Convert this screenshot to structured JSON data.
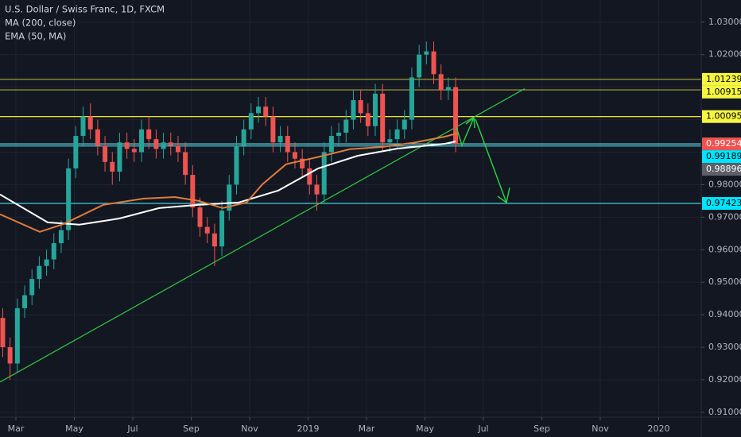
{
  "chart_data": {
    "type": "candlestick",
    "title": "U.S. Dollar / Swiss Franc, 1D, FXCM",
    "xlim": [
      0.456,
      24.456
    ],
    "xticks": [
      {
        "value": 1,
        "label": "Mar"
      },
      {
        "value": 3,
        "label": "May"
      },
      {
        "value": 5,
        "label": "Jul"
      },
      {
        "value": 7,
        "label": "Sep"
      },
      {
        "value": 9,
        "label": "Nov"
      },
      {
        "value": 11,
        "label": "2019"
      },
      {
        "value": 13,
        "label": "Mar"
      },
      {
        "value": 15,
        "label": "May"
      },
      {
        "value": 17,
        "label": "Jul"
      },
      {
        "value": 19,
        "label": "Sep"
      },
      {
        "value": 21,
        "label": "Nov"
      },
      {
        "value": 23,
        "label": "2020"
      }
    ],
    "ylim": [
      0.9085,
      1.0368
    ],
    "yticks": [
      {
        "value": 1.03,
        "label": "1.03000"
      },
      {
        "value": 1.02,
        "label": "1.02000"
      },
      {
        "value": 1.01,
        "label": "1.01000"
      },
      {
        "value": 1.0,
        "label": "1.00000"
      },
      {
        "value": 0.99,
        "label": "0.99000"
      },
      {
        "value": 0.98,
        "label": "0.98000"
      },
      {
        "value": 0.97,
        "label": "0.97000"
      },
      {
        "value": 0.96,
        "label": "0.96000"
      },
      {
        "value": 0.95,
        "label": "0.95000"
      },
      {
        "value": 0.94,
        "label": "0.94000"
      },
      {
        "value": 0.93,
        "label": "0.93000"
      },
      {
        "value": 0.92,
        "label": "0.92000"
      },
      {
        "value": 0.91,
        "label": "0.91000"
      }
    ],
    "grid": true,
    "up_color": "#26a69a",
    "down_color": "#ef5350",
    "x": [
      0.55,
      0.8,
      1.05,
      1.3,
      1.55,
      1.8,
      2.05,
      2.3,
      2.55,
      2.8,
      3.05,
      3.3,
      3.55,
      3.8,
      4.05,
      4.3,
      4.55,
      4.8,
      5.05,
      5.3,
      5.55,
      5.8,
      6.05,
      6.3,
      6.55,
      6.8,
      7.05,
      7.3,
      7.55,
      7.8,
      8.05,
      8.3,
      8.55,
      8.8,
      9.05,
      9.3,
      9.55,
      9.8,
      10.05,
      10.3,
      10.55,
      10.8,
      11.05,
      11.3,
      11.55,
      11.8,
      12.05,
      12.3,
      12.55,
      12.8,
      13.05,
      13.3,
      13.55,
      13.8,
      14.05,
      14.3,
      14.55,
      14.8,
      15.05,
      15.3,
      15.55,
      15.8,
      16.05
    ],
    "open": [
      0.939,
      0.93,
      0.925,
      0.942,
      0.946,
      0.951,
      0.955,
      0.957,
      0.962,
      0.966,
      0.985,
      0.995,
      1.001,
      0.997,
      0.992,
      0.987,
      0.984,
      0.993,
      0.991,
      0.99,
      0.997,
      0.994,
      0.991,
      0.993,
      0.992,
      0.99,
      0.983,
      0.973,
      0.967,
      0.965,
      0.961,
      0.972,
      0.98,
      0.992,
      0.997,
      1.002,
      1.004,
      1.001,
      0.993,
      0.995,
      0.99,
      0.988,
      0.985,
      0.98,
      0.977,
      0.99,
      0.995,
      0.996,
      1.0,
      1.006,
      1.002,
      0.998,
      1.008,
      0.993,
      0.994,
      0.997,
      1.0,
      1.013,
      1.02,
      1.021,
      1.014,
      1.009,
      1.01
    ],
    "high": [
      0.942,
      0.933,
      0.945,
      0.949,
      0.954,
      0.958,
      0.96,
      0.965,
      0.969,
      0.988,
      0.998,
      1.004,
      1.005,
      1.0,
      0.995,
      0.99,
      0.996,
      0.996,
      0.994,
      1.0,
      1.001,
      0.997,
      0.996,
      0.996,
      0.995,
      0.993,
      0.986,
      0.976,
      0.97,
      0.968,
      0.975,
      0.983,
      0.995,
      1.0,
      1.005,
      1.007,
      1.007,
      1.004,
      0.998,
      0.998,
      0.993,
      0.991,
      0.988,
      0.983,
      0.993,
      0.998,
      0.999,
      1.003,
      1.009,
      1.009,
      1.005,
      1.011,
      1.011,
      0.997,
      1.0,
      1.003,
      1.016,
      1.023,
      1.024,
      1.024,
      1.017,
      1.013,
      1.013
    ],
    "low": [
      0.927,
      0.92,
      0.922,
      0.939,
      0.943,
      0.948,
      0.952,
      0.954,
      0.959,
      0.963,
      0.982,
      0.992,
      0.994,
      0.989,
      0.984,
      0.98,
      0.981,
      0.988,
      0.987,
      0.987,
      0.991,
      0.988,
      0.988,
      0.989,
      0.987,
      0.98,
      0.97,
      0.964,
      0.962,
      0.955,
      0.958,
      0.969,
      0.977,
      0.989,
      0.994,
      0.999,
      0.998,
      0.99,
      0.99,
      0.987,
      0.985,
      0.982,
      0.977,
      0.972,
      0.974,
      0.987,
      0.992,
      0.993,
      0.997,
      0.999,
      0.995,
      0.995,
      0.99,
      0.99,
      0.991,
      0.994,
      0.997,
      1.01,
      1.017,
      1.011,
      1.006,
      1.006,
      0.99
    ],
    "close": [
      0.93,
      0.925,
      0.942,
      0.946,
      0.951,
      0.955,
      0.957,
      0.962,
      0.966,
      0.985,
      0.995,
      1.001,
      0.997,
      0.992,
      0.987,
      0.984,
      0.993,
      0.991,
      0.99,
      0.997,
      0.994,
      0.991,
      0.993,
      0.992,
      0.99,
      0.983,
      0.973,
      0.967,
      0.965,
      0.961,
      0.972,
      0.98,
      0.992,
      0.997,
      1.002,
      1.004,
      1.001,
      0.993,
      0.995,
      0.99,
      0.988,
      0.985,
      0.98,
      0.977,
      0.99,
      0.995,
      0.996,
      1.0,
      1.006,
      1.002,
      0.998,
      1.008,
      0.993,
      0.994,
      0.997,
      1.0,
      1.013,
      1.02,
      1.021,
      1.014,
      1.009,
      1.01,
      0.9925
    ],
    "series": [
      {
        "name": "MA (200, close)",
        "color": "#ffffff",
        "x": [
          0.456,
          2.088,
          3.177,
          4.537,
          5.898,
          7.259,
          8.619,
          9.98,
          11.34,
          12.701,
          14.061,
          15.694,
          16.048
        ],
        "values": [
          0.977,
          0.9684,
          0.9677,
          0.9696,
          0.9728,
          0.9738,
          0.9745,
          0.9782,
          0.985,
          0.9889,
          0.9911,
          0.9926,
          0.9933
        ]
      },
      {
        "name": "EMA (50, MA)",
        "color": "#e07b39",
        "x": [
          0.456,
          1.816,
          2.633,
          3.993,
          5.354,
          6.442,
          7.259,
          8.075,
          8.891,
          9.435,
          10.252,
          11.34,
          12.429,
          13.517,
          14.605,
          15.694,
          16.102
        ],
        "values": [
          0.9709,
          0.9655,
          0.9679,
          0.9738,
          0.9757,
          0.9762,
          0.975,
          0.9728,
          0.9745,
          0.9801,
          0.9863,
          0.9885,
          0.9909,
          0.9916,
          0.9929,
          0.9948,
          0.9958
        ]
      }
    ],
    "trendline": {
      "color": "#2ecc40",
      "x": [
        0.456,
        18.41
      ],
      "y": [
        0.9193,
        1.0095
      ]
    },
    "levels": [
      {
        "value": 1.01239,
        "line_color": "#a09a3a",
        "label_bg": "#f5f542",
        "label_fg": "#000000"
      },
      {
        "value": 1.00915,
        "line_color": "#a09a3a",
        "label_bg": "#f5f542",
        "label_fg": "#000000"
      },
      {
        "value": 1.00095,
        "line_color": "#e8e337",
        "label_bg": "#f5f542",
        "label_fg": "#000000"
      },
      {
        "value": 0.99254,
        "line_color": "#6fd6e3",
        "label_bg": "#ef5350",
        "label_fg": "#ffffff"
      },
      {
        "value": 0.99189,
        "line_color": "#3fd0e0",
        "label_bg": "#00e5ff",
        "label_fg": "#000000"
      },
      {
        "value": 0.98896,
        "line_color": null,
        "label_bg": "#5d606b",
        "label_fg": "#ffffff"
      },
      {
        "value": 0.97423,
        "line_color": "#3fd0e0",
        "label_bg": "#00e5ff",
        "label_fg": "#000000"
      }
    ]
  }
}
